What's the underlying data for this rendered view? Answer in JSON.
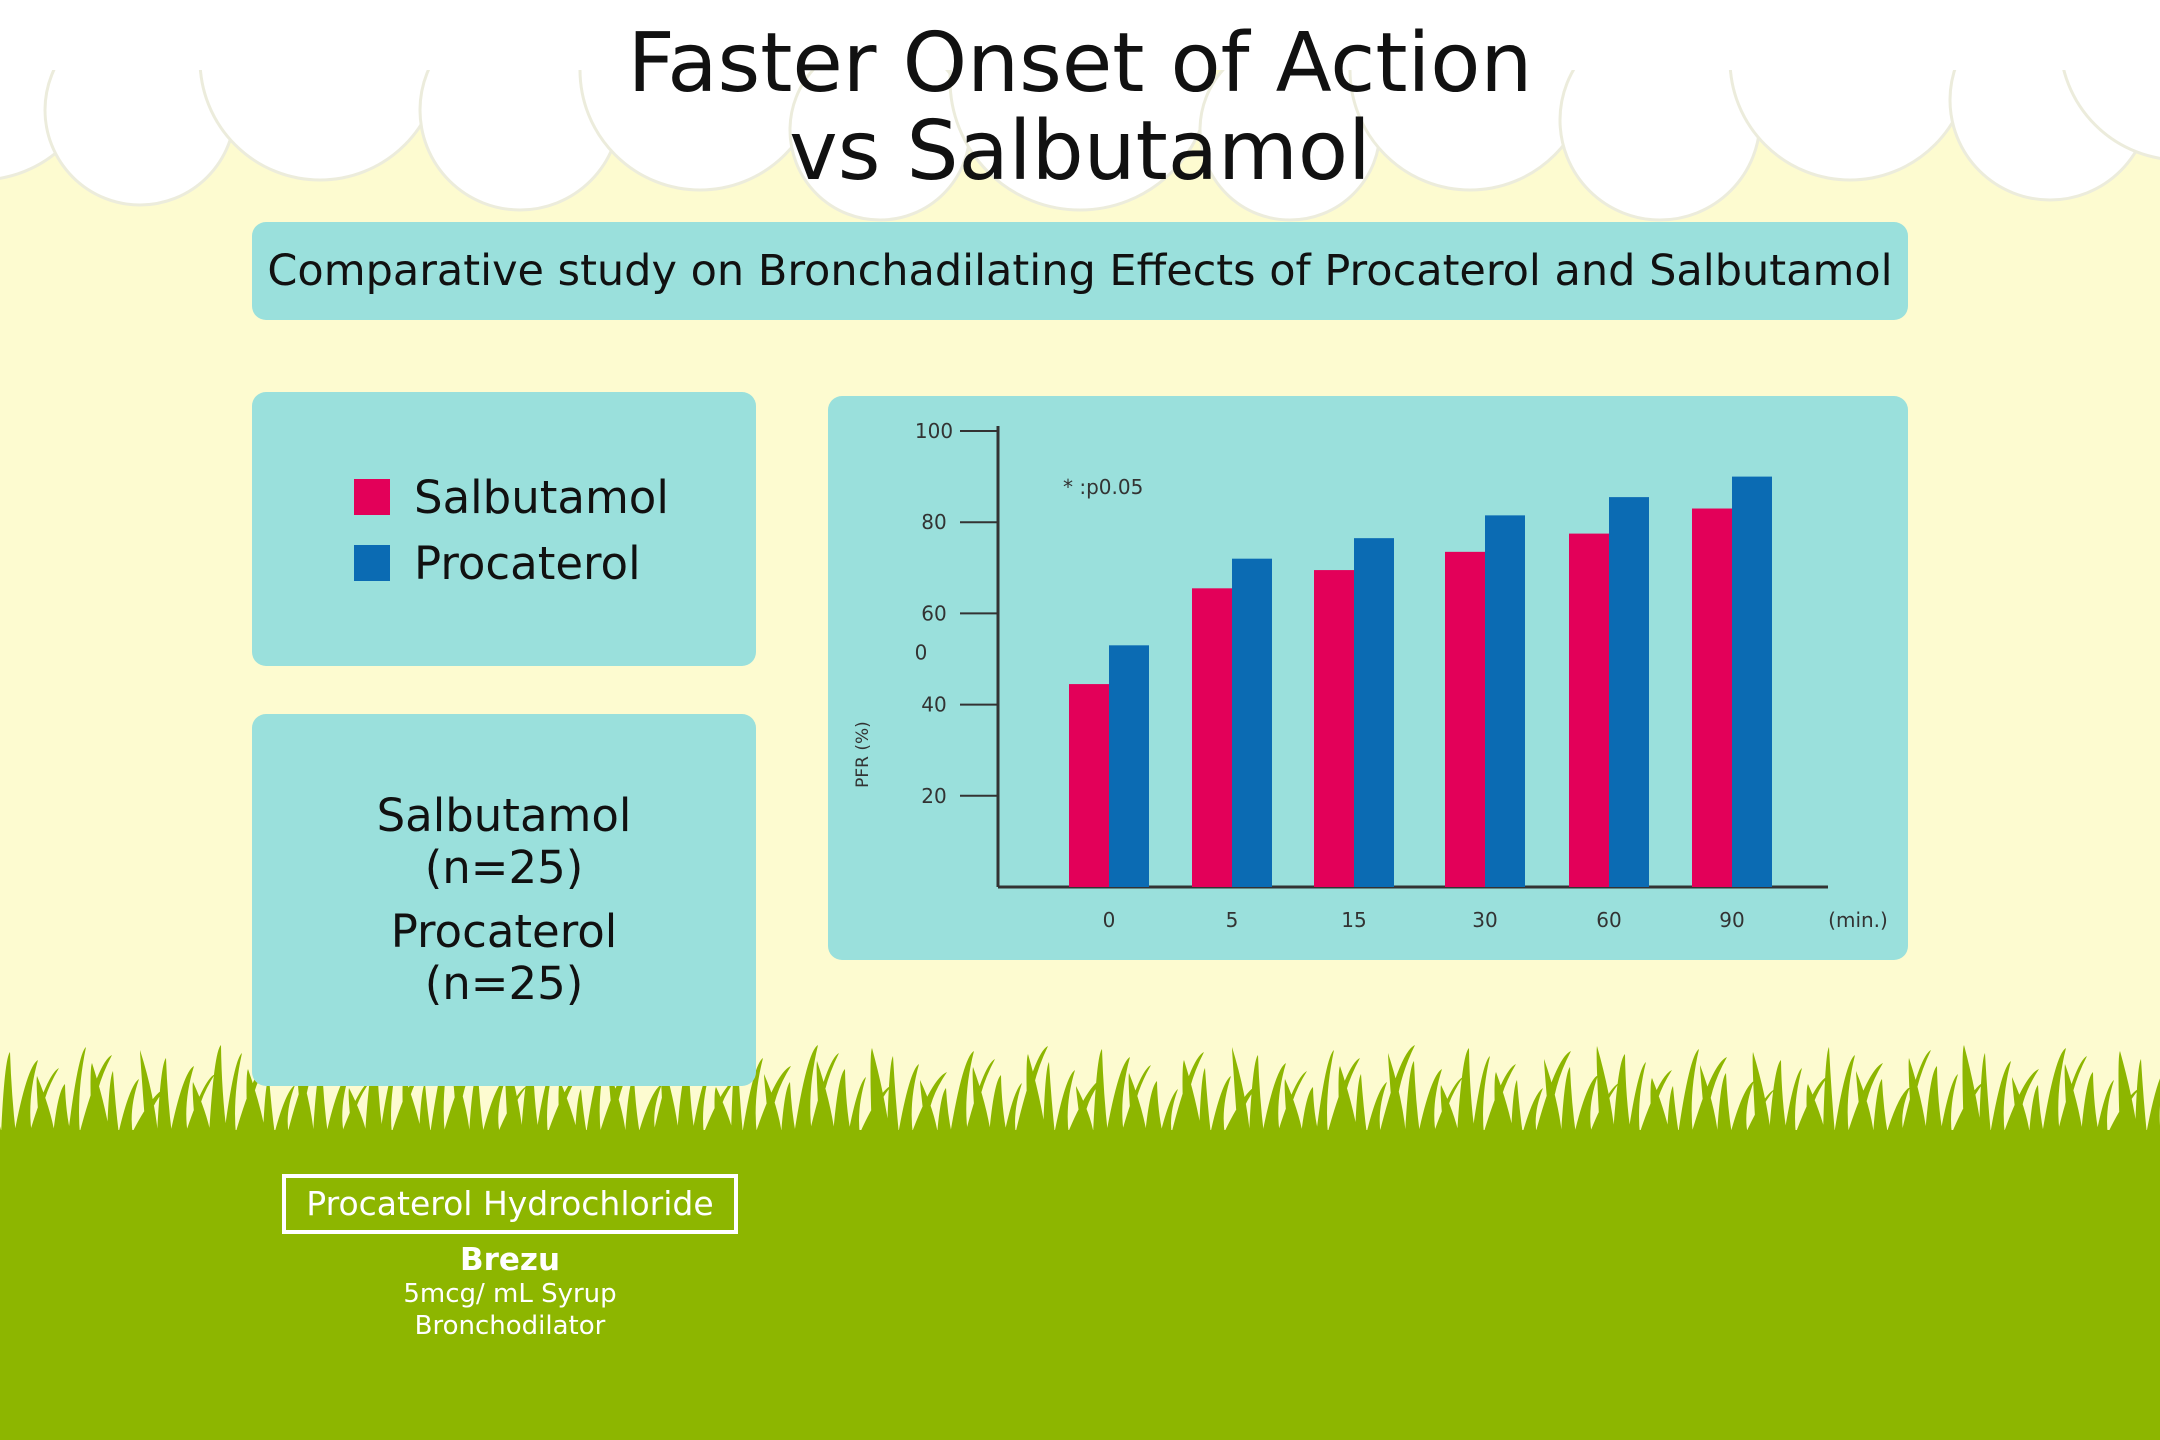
{
  "header": {
    "title_line1": "Faster Onset of Action",
    "title_line2": "vs Salbutamol"
  },
  "banner": {
    "text": "Comparative study on Bronchadilating Effects of Procaterol and Salbutamol"
  },
  "legend": {
    "items": [
      {
        "label": "Salbutamol",
        "color": "#e30059"
      },
      {
        "label": "Procaterol",
        "color": "#0b6bb3"
      }
    ]
  },
  "sample_sizes": {
    "salbutamol_name": "Salbutamol",
    "salbutamol_n": "(n=25)",
    "procaterol_name": "Procaterol",
    "procaterol_n": "(n=25)"
  },
  "chart_data": {
    "type": "bar",
    "categories": [
      "0",
      "5",
      "15",
      "30",
      "60",
      "90"
    ],
    "series": [
      {
        "name": "Salbutamol",
        "color": "#e30059",
        "values": [
          44.5,
          65.5,
          69.5,
          73.5,
          77.5,
          83
        ]
      },
      {
        "name": "Procaterol",
        "color": "#0b6bb3",
        "values": [
          53,
          72,
          76.5,
          81.5,
          85.5,
          90
        ]
      }
    ],
    "ylabel": "PFR (%)",
    "xlabel": "(min.)",
    "yticks": [
      "20",
      "40",
      "60",
      "80",
      "100"
    ],
    "ytick_values": [
      20,
      40,
      60,
      80,
      100
    ],
    "stray_tick_label": "0",
    "ylim": [
      0,
      100
    ],
    "annotation": "* :p0.05",
    "grid": false
  },
  "brand": {
    "box_label": "Procaterol Hydrochloride",
    "name": "Brezu",
    "dose": "5mcg/ mL Syrup",
    "category": "Bronchodilator"
  },
  "colors": {
    "background": "#fdfbd0",
    "panel": "#9ae0dc",
    "grass": "#8db600",
    "cloud": "#ffffff"
  }
}
